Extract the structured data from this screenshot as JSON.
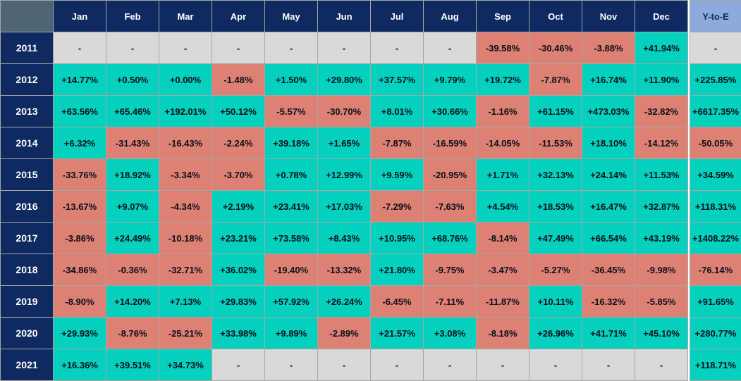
{
  "chart_data": {
    "type": "heatmap",
    "columns": [
      "Jan",
      "Feb",
      "Mar",
      "Apr",
      "May",
      "Jun",
      "Jul",
      "Aug",
      "Sep",
      "Oct",
      "Nov",
      "Dec"
    ],
    "ytd_label": "Y-to-E",
    "no_data_marker": "-",
    "rows": [
      {
        "year": "2011",
        "monthly": [
          "-",
          "-",
          "-",
          "-",
          "-",
          "-",
          "-",
          "-",
          "-39.58%",
          "-30.46%",
          "-3.88%",
          "+41.94%"
        ],
        "ytd": "-"
      },
      {
        "year": "2012",
        "monthly": [
          "+14.77%",
          "+0.50%",
          "+0.00%",
          "-1.48%",
          "+1.50%",
          "+29.80%",
          "+37.57%",
          "+9.79%",
          "+19.72%",
          "-7.87%",
          "+16.74%",
          "+11.90%"
        ],
        "ytd": "+225.85%"
      },
      {
        "year": "2013",
        "monthly": [
          "+63.56%",
          "+65.46%",
          "+192.01%",
          "+50.12%",
          "-5.57%",
          "-30.70%",
          "+8.01%",
          "+30.66%",
          "-1.16%",
          "+61.15%",
          "+473.03%",
          "-32.82%"
        ],
        "ytd": "+6617.35%"
      },
      {
        "year": "2014",
        "monthly": [
          "+6.32%",
          "-31.43%",
          "-16.43%",
          "-2.24%",
          "+39.18%",
          "+1.65%",
          "-7.87%",
          "-16.59%",
          "-14.05%",
          "-11.53%",
          "+18.10%",
          "-14.12%"
        ],
        "ytd": "-50.05%"
      },
      {
        "year": "2015",
        "monthly": [
          "-33.76%",
          "+18.92%",
          "-3.34%",
          "-3.70%",
          "+0.78%",
          "+12.99%",
          "+9.59%",
          "-20.95%",
          "+1.71%",
          "+32.13%",
          "+24.14%",
          "+11.53%"
        ],
        "ytd": "+34.59%"
      },
      {
        "year": "2016",
        "monthly": [
          "-13.67%",
          "+9.07%",
          "-4.34%",
          "+2.19%",
          "+23.41%",
          "+17.03%",
          "-7.29%",
          "-7.63%",
          "+4.54%",
          "+18.53%",
          "+16.47%",
          "+32.87%"
        ],
        "ytd": "+118.31%"
      },
      {
        "year": "2017",
        "monthly": [
          "-3.86%",
          "+24.49%",
          "-10.18%",
          "+23.21%",
          "+73.58%",
          "+8.43%",
          "+10.95%",
          "+68.76%",
          "-8.14%",
          "+47.49%",
          "+66.54%",
          "+43.19%"
        ],
        "ytd": "+1408.22%"
      },
      {
        "year": "2018",
        "monthly": [
          "-34.86%",
          "-0.36%",
          "-32.71%",
          "+36.02%",
          "-19.40%",
          "-13.32%",
          "+21.80%",
          "-9.75%",
          "-3.47%",
          "-5.27%",
          "-36.45%",
          "-9.98%"
        ],
        "ytd": "-76.14%"
      },
      {
        "year": "2019",
        "monthly": [
          "-8.90%",
          "+14.20%",
          "+7.13%",
          "+29.83%",
          "+57.92%",
          "+26.24%",
          "-6.45%",
          "-7.11%",
          "-11.87%",
          "+10.11%",
          "-16.32%",
          "-5.85%"
        ],
        "ytd": "+91.65%"
      },
      {
        "year": "2020",
        "monthly": [
          "+29.93%",
          "-8.76%",
          "-25.21%",
          "+33.98%",
          "+9.89%",
          "-2.89%",
          "+21.57%",
          "+3.08%",
          "-8.18%",
          "+26.96%",
          "+41.71%",
          "+45.10%"
        ],
        "ytd": "+280.77%"
      },
      {
        "year": "2021",
        "monthly": [
          "+16.36%",
          "+39.51%",
          "+34.73%",
          "-",
          "-",
          "-",
          "-",
          "-",
          "-",
          "-",
          "-",
          "-"
        ],
        "ytd": "+118.71%"
      }
    ]
  },
  "colors": {
    "positive_cell": "#06d1bf",
    "negative_cell": "#dd8174",
    "no_data_cell": "#d9d9d9",
    "header_navy": "#0f2a60",
    "corner_slate": "#4e6575",
    "ytd_header_blue": "#8ea9db",
    "grid_border": "#a6a6a6"
  }
}
